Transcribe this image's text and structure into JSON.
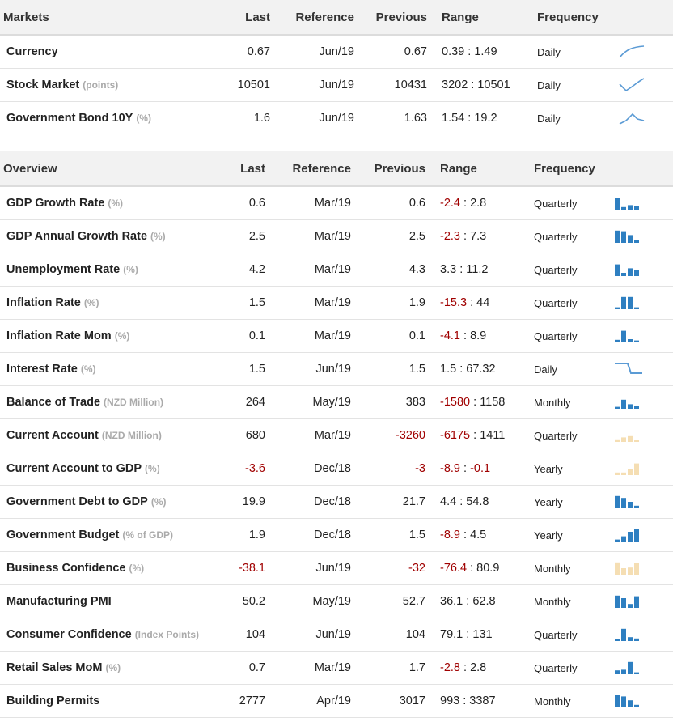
{
  "colors": {
    "accent_blue": "#2e7fc1",
    "spark_line": "#5b9bd5",
    "spark_pale": "#f5deb3",
    "negative": "#a00000"
  },
  "markets": {
    "headers": {
      "name": "Markets",
      "last": "Last",
      "reference": "Reference",
      "previous": "Previous",
      "range": "Range",
      "frequency": "Frequency"
    },
    "rows": [
      {
        "name": "Currency",
        "unit": "",
        "last": "0.67",
        "reference": "Jun/19",
        "previous": "0.67",
        "range_low": "0.39",
        "range_sep": " : ",
        "range_high": "1.49",
        "frequency": "Daily",
        "spark": "line-rise"
      },
      {
        "name": "Stock Market",
        "unit": "(points)",
        "last": "10501",
        "reference": "Jun/19",
        "previous": "10431",
        "range_low": "3202",
        "range_sep": " : ",
        "range_high": "10501",
        "frequency": "Daily",
        "spark": "line-check"
      },
      {
        "name": "Government Bond 10Y",
        "unit": "(%)",
        "last": "1.6",
        "reference": "Jun/19",
        "previous": "1.63",
        "range_low": "1.54",
        "range_sep": " : ",
        "range_high": "19.2",
        "frequency": "Daily",
        "spark": "line-peak"
      }
    ]
  },
  "overview": {
    "headers": {
      "name": "Overview",
      "last": "Last",
      "reference": "Reference",
      "previous": "Previous",
      "range": "Range",
      "frequency": "Frequency"
    },
    "rows": [
      {
        "name": "GDP Growth Rate",
        "unit": "(%)",
        "last": "0.6",
        "reference": "Mar/19",
        "previous": "0.6",
        "range_low": "-2.4",
        "range_sep": " : ",
        "range_high": "2.8",
        "frequency": "Quarterly",
        "bars": [
          0.9,
          0.2,
          0.35,
          0.3
        ],
        "bar_color": "blue"
      },
      {
        "name": "GDP Annual Growth Rate",
        "unit": "(%)",
        "last": "2.5",
        "reference": "Mar/19",
        "previous": "2.5",
        "range_low": "-2.3",
        "range_sep": " : ",
        "range_high": "7.3",
        "frequency": "Quarterly",
        "bars": [
          0.95,
          0.9,
          0.6,
          0.2
        ],
        "bar_color": "blue"
      },
      {
        "name": "Unemployment Rate",
        "unit": "(%)",
        "last": "4.2",
        "reference": "Mar/19",
        "previous": "4.3",
        "range_low": "3.3",
        "range_sep": " : ",
        "range_high": "11.2",
        "frequency": "Quarterly",
        "bars": [
          0.9,
          0.25,
          0.6,
          0.5
        ],
        "bar_color": "blue"
      },
      {
        "name": "Inflation Rate",
        "unit": "(%)",
        "last": "1.5",
        "reference": "Mar/19",
        "previous": "1.9",
        "range_low": "-15.3",
        "range_sep": " : ",
        "range_high": "44",
        "frequency": "Quarterly",
        "bars": [
          0.15,
          0.95,
          0.95,
          0.15
        ],
        "bar_color": "blue"
      },
      {
        "name": "Inflation Rate Mom",
        "unit": "(%)",
        "last": "0.1",
        "reference": "Mar/19",
        "previous": "0.1",
        "range_low": "-4.1",
        "range_sep": " : ",
        "range_high": "8.9",
        "frequency": "Quarterly",
        "bars": [
          0.2,
          0.9,
          0.25,
          0.15
        ],
        "bar_color": "blue"
      },
      {
        "name": "Interest Rate",
        "unit": "(%)",
        "last": "1.5",
        "reference": "Jun/19",
        "previous": "1.5",
        "range_low": "1.5",
        "range_sep": " : ",
        "range_high": "67.32",
        "frequency": "Daily",
        "spark": "line-step"
      },
      {
        "name": "Balance of Trade",
        "unit": "(NZD Million)",
        "last": "264",
        "reference": "May/19",
        "previous": "383",
        "range_low": "-1580",
        "range_sep": " : ",
        "range_high": "1158",
        "frequency": "Monthly",
        "bars": [
          0.15,
          0.7,
          0.35,
          0.25
        ],
        "bar_color": "blue"
      },
      {
        "name": "Current Account",
        "unit": "(NZD Million)",
        "last": "680",
        "reference": "Mar/19",
        "previous": "-3260",
        "range_low": "-6175",
        "range_sep": " : ",
        "range_high": "1411",
        "frequency": "Quarterly",
        "bars": [
          0.2,
          0.35,
          0.45,
          0.15
        ],
        "bar_color": "pale"
      },
      {
        "name": "Current Account to GDP",
        "unit": "(%)",
        "last": "-3.6",
        "reference": "Dec/18",
        "previous": "-3",
        "range_low": "-8.9",
        "range_sep": " : ",
        "range_high": "-0.1",
        "frequency": "Yearly",
        "bars": [
          0.2,
          0.2,
          0.5,
          0.9
        ],
        "bar_color": "pale"
      },
      {
        "name": "Government Debt to GDP",
        "unit": "(%)",
        "last": "19.9",
        "reference": "Dec/18",
        "previous": "21.7",
        "range_low": "4.4",
        "range_sep": " : ",
        "range_high": "54.8",
        "frequency": "Yearly",
        "bars": [
          0.95,
          0.8,
          0.5,
          0.2
        ],
        "bar_color": "blue"
      },
      {
        "name": "Government Budget",
        "unit": "(% of GDP)",
        "last": "1.9",
        "reference": "Dec/18",
        "previous": "1.5",
        "range_low": "-8.9",
        "range_sep": " : ",
        "range_high": "4.5",
        "frequency": "Yearly",
        "bars": [
          0.15,
          0.4,
          0.75,
          0.95
        ],
        "bar_color": "blue"
      },
      {
        "name": "Business Confidence",
        "unit": "(%)",
        "last": "-38.1",
        "reference": "Jun/19",
        "previous": "-32",
        "range_low": "-76.4",
        "range_sep": " : ",
        "range_high": "80.9",
        "frequency": "Monthly",
        "bars": [
          0.95,
          0.5,
          0.55,
          0.9
        ],
        "bar_color": "pale"
      },
      {
        "name": "Manufacturing PMI",
        "unit": "",
        "last": "50.2",
        "reference": "May/19",
        "previous": "52.7",
        "range_low": "36.1",
        "range_sep": " : ",
        "range_high": "62.8",
        "frequency": "Monthly",
        "bars": [
          0.95,
          0.75,
          0.3,
          0.9
        ],
        "bar_color": "blue"
      },
      {
        "name": "Consumer Confidence",
        "unit": "(Index Points)",
        "last": "104",
        "reference": "Jun/19",
        "previous": "104",
        "range_low": "79.1",
        "range_sep": " : ",
        "range_high": "131",
        "frequency": "Quarterly",
        "bars": [
          0.15,
          0.95,
          0.3,
          0.2
        ],
        "bar_color": "blue"
      },
      {
        "name": "Retail Sales MoM",
        "unit": "(%)",
        "last": "0.7",
        "reference": "Mar/19",
        "previous": "1.7",
        "range_low": "-2.8",
        "range_sep": " : ",
        "range_high": "2.8",
        "frequency": "Quarterly",
        "bars": [
          0.3,
          0.35,
          0.95,
          0.15
        ],
        "bar_color": "blue"
      },
      {
        "name": "Building Permits",
        "unit": "",
        "last": "2777",
        "reference": "Apr/19",
        "previous": "3017",
        "range_low": "993",
        "range_sep": " : ",
        "range_high": "3387",
        "frequency": "Monthly",
        "bars": [
          0.95,
          0.85,
          0.55,
          0.2
        ],
        "bar_color": "blue"
      }
    ]
  }
}
